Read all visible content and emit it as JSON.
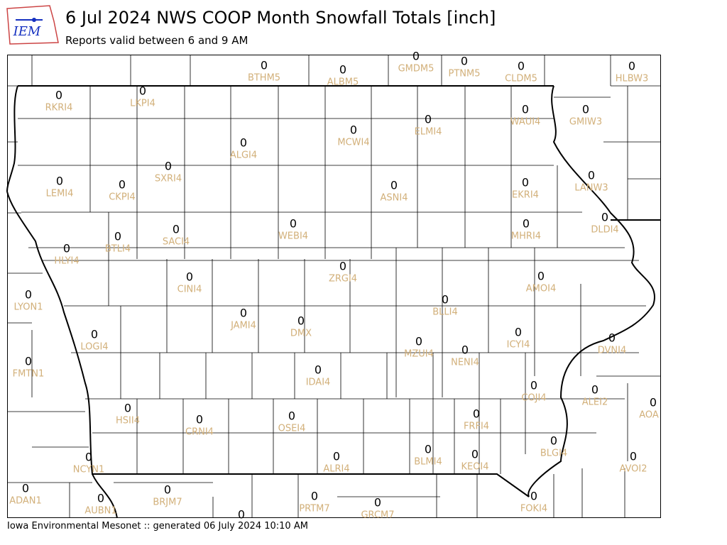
{
  "logo": {
    "text": "IEM"
  },
  "header": {
    "title": "6 Jul 2024 NWS COOP Month Snowfall Totals [inch]",
    "subtitle": "Reports valid between 6 and 9 AM"
  },
  "stations": [
    {
      "id": "BTHM5",
      "value": 0
    },
    {
      "id": "ALBM5",
      "value": 0
    },
    {
      "id": "GMDM5",
      "value": 0
    },
    {
      "id": "PTNM5",
      "value": 0
    },
    {
      "id": "CLDM5",
      "value": 0
    },
    {
      "id": "HLBW3",
      "value": 0
    },
    {
      "id": "RKRI4",
      "value": 0
    },
    {
      "id": "LKPI4",
      "value": 0
    },
    {
      "id": "ELMI4",
      "value": 0
    },
    {
      "id": "WAUI4",
      "value": 0
    },
    {
      "id": "GMIW3",
      "value": 0
    },
    {
      "id": "ALGI4",
      "value": 0
    },
    {
      "id": "MCWI4",
      "value": 0
    },
    {
      "id": "LEMI4",
      "value": 0
    },
    {
      "id": "CKPI4",
      "value": 0
    },
    {
      "id": "SXRI4",
      "value": 0
    },
    {
      "id": "ASNI4",
      "value": 0
    },
    {
      "id": "EKRI4",
      "value": 0
    },
    {
      "id": "LANW3",
      "value": 0
    },
    {
      "id": "SACI4",
      "value": 0
    },
    {
      "id": "BTLI4",
      "value": 0
    },
    {
      "id": "WEBI4",
      "value": 0
    },
    {
      "id": "MHRI4",
      "value": 0
    },
    {
      "id": "DLDI4",
      "value": 0
    },
    {
      "id": "HLYI4",
      "value": 0
    },
    {
      "id": "ZRGI4",
      "value": 0
    },
    {
      "id": "CINI4",
      "value": 0
    },
    {
      "id": "AMOI4",
      "value": 0
    },
    {
      "id": "LYON1",
      "value": 0
    },
    {
      "id": "BLLI4",
      "value": 0
    },
    {
      "id": "JAMI4",
      "value": 0
    },
    {
      "id": "DMX",
      "value": 0
    },
    {
      "id": "LOGI4",
      "value": 0
    },
    {
      "id": "ICYI4",
      "value": 0
    },
    {
      "id": "DVNI4",
      "value": 0
    },
    {
      "id": "MZUI4",
      "value": 0
    },
    {
      "id": "NENI4",
      "value": 0
    },
    {
      "id": "FMTN1",
      "value": 0
    },
    {
      "id": "IDAI4",
      "value": 0
    },
    {
      "id": "COJI4",
      "value": 0
    },
    {
      "id": "ALEI2",
      "value": 0
    },
    {
      "id": "AOA",
      "value": 0
    },
    {
      "id": "HSII4",
      "value": 0
    },
    {
      "id": "CRNI4",
      "value": 0
    },
    {
      "id": "OSEI4",
      "value": 0
    },
    {
      "id": "FRFI4",
      "value": 0
    },
    {
      "id": "BLGI4",
      "value": 0
    },
    {
      "id": "NCYN1",
      "value": 0
    },
    {
      "id": "ALRI4",
      "value": 0
    },
    {
      "id": "BLMI4",
      "value": 0
    },
    {
      "id": "KEOI4",
      "value": 0
    },
    {
      "id": "AVOI2",
      "value": 0
    },
    {
      "id": "ADAN1",
      "value": 0
    },
    {
      "id": "BRJM7",
      "value": 0
    },
    {
      "id": "AUBN1",
      "value": 0
    },
    {
      "id": "PRTM7",
      "value": 0
    },
    {
      "id": "GRCM7",
      "value": 0
    },
    {
      "id": "FOKI4",
      "value": 0
    },
    {
      "value": 0
    }
  ],
  "footer": {
    "text": "Iowa Environmental Mesonet :: generated 06 July 2024 10:10 AM"
  }
}
